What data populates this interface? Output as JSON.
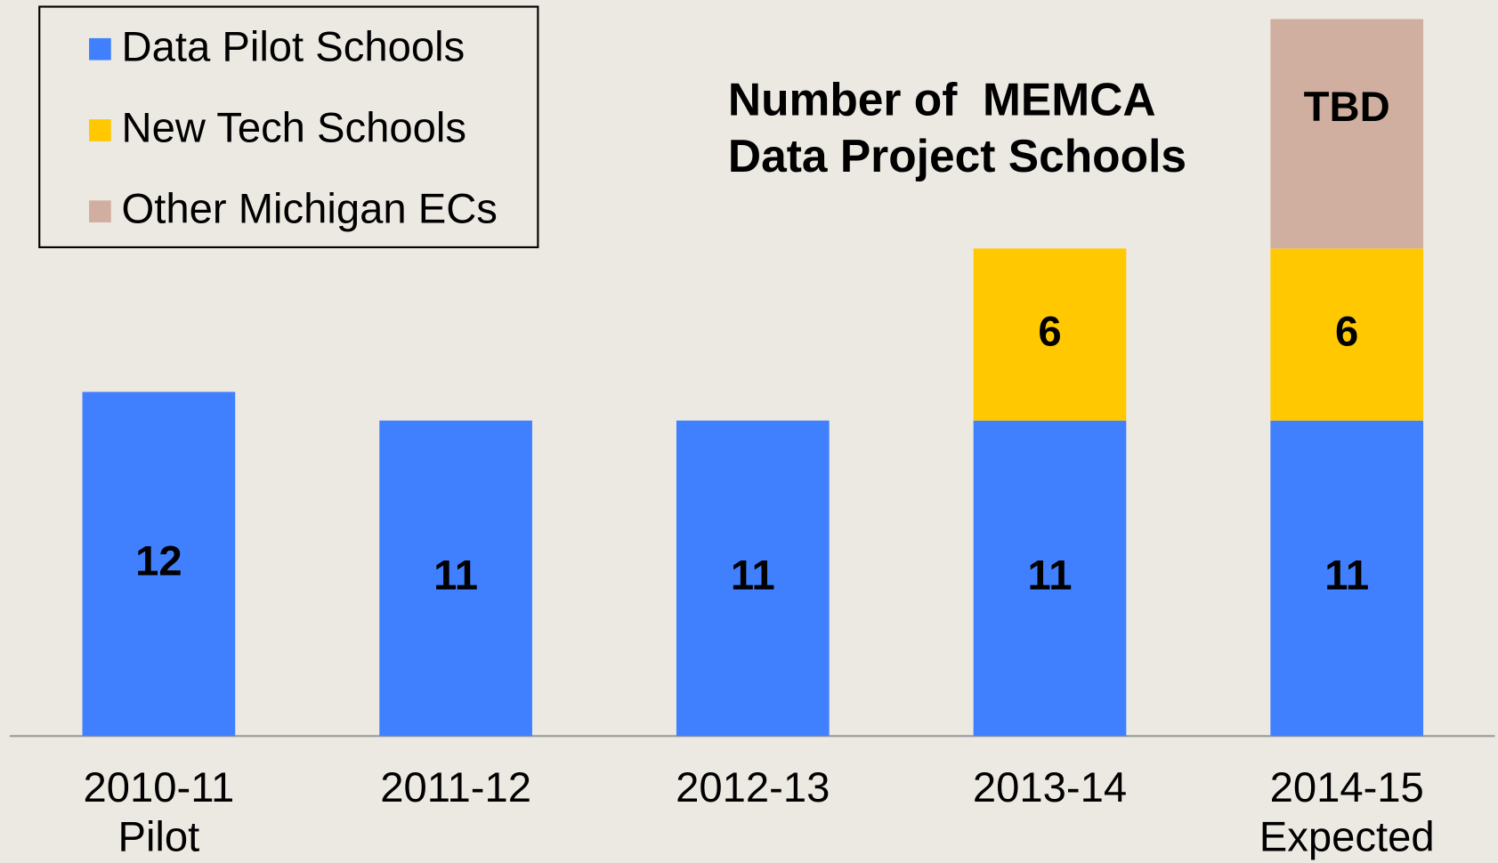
{
  "chart_data": {
    "type": "bar",
    "stacked": true,
    "title": [
      "Number of  MEMCA",
      "Data Project Schools"
    ],
    "categories": [
      [
        "2010-11",
        "Pilot"
      ],
      [
        "2011-12"
      ],
      [
        "2012-13"
      ],
      [
        "2013-14"
      ],
      [
        "2014-15",
        "Expected"
      ]
    ],
    "series": [
      {
        "name": "Data Pilot Schools",
        "color": "#4080ff",
        "values": [
          12,
          11,
          11,
          11,
          11
        ]
      },
      {
        "name": "New Tech Schools",
        "color": "#ffc800",
        "values": [
          null,
          null,
          null,
          6,
          6
        ]
      },
      {
        "name": "Other Michigan ECs",
        "color": "#d1afa0",
        "values": [
          null,
          null,
          null,
          null,
          8
        ],
        "value_labels": [
          null,
          null,
          null,
          null,
          "TBD"
        ]
      }
    ],
    "ylim": [
      0,
      25
    ],
    "grid": false,
    "legend": "top-left"
  }
}
